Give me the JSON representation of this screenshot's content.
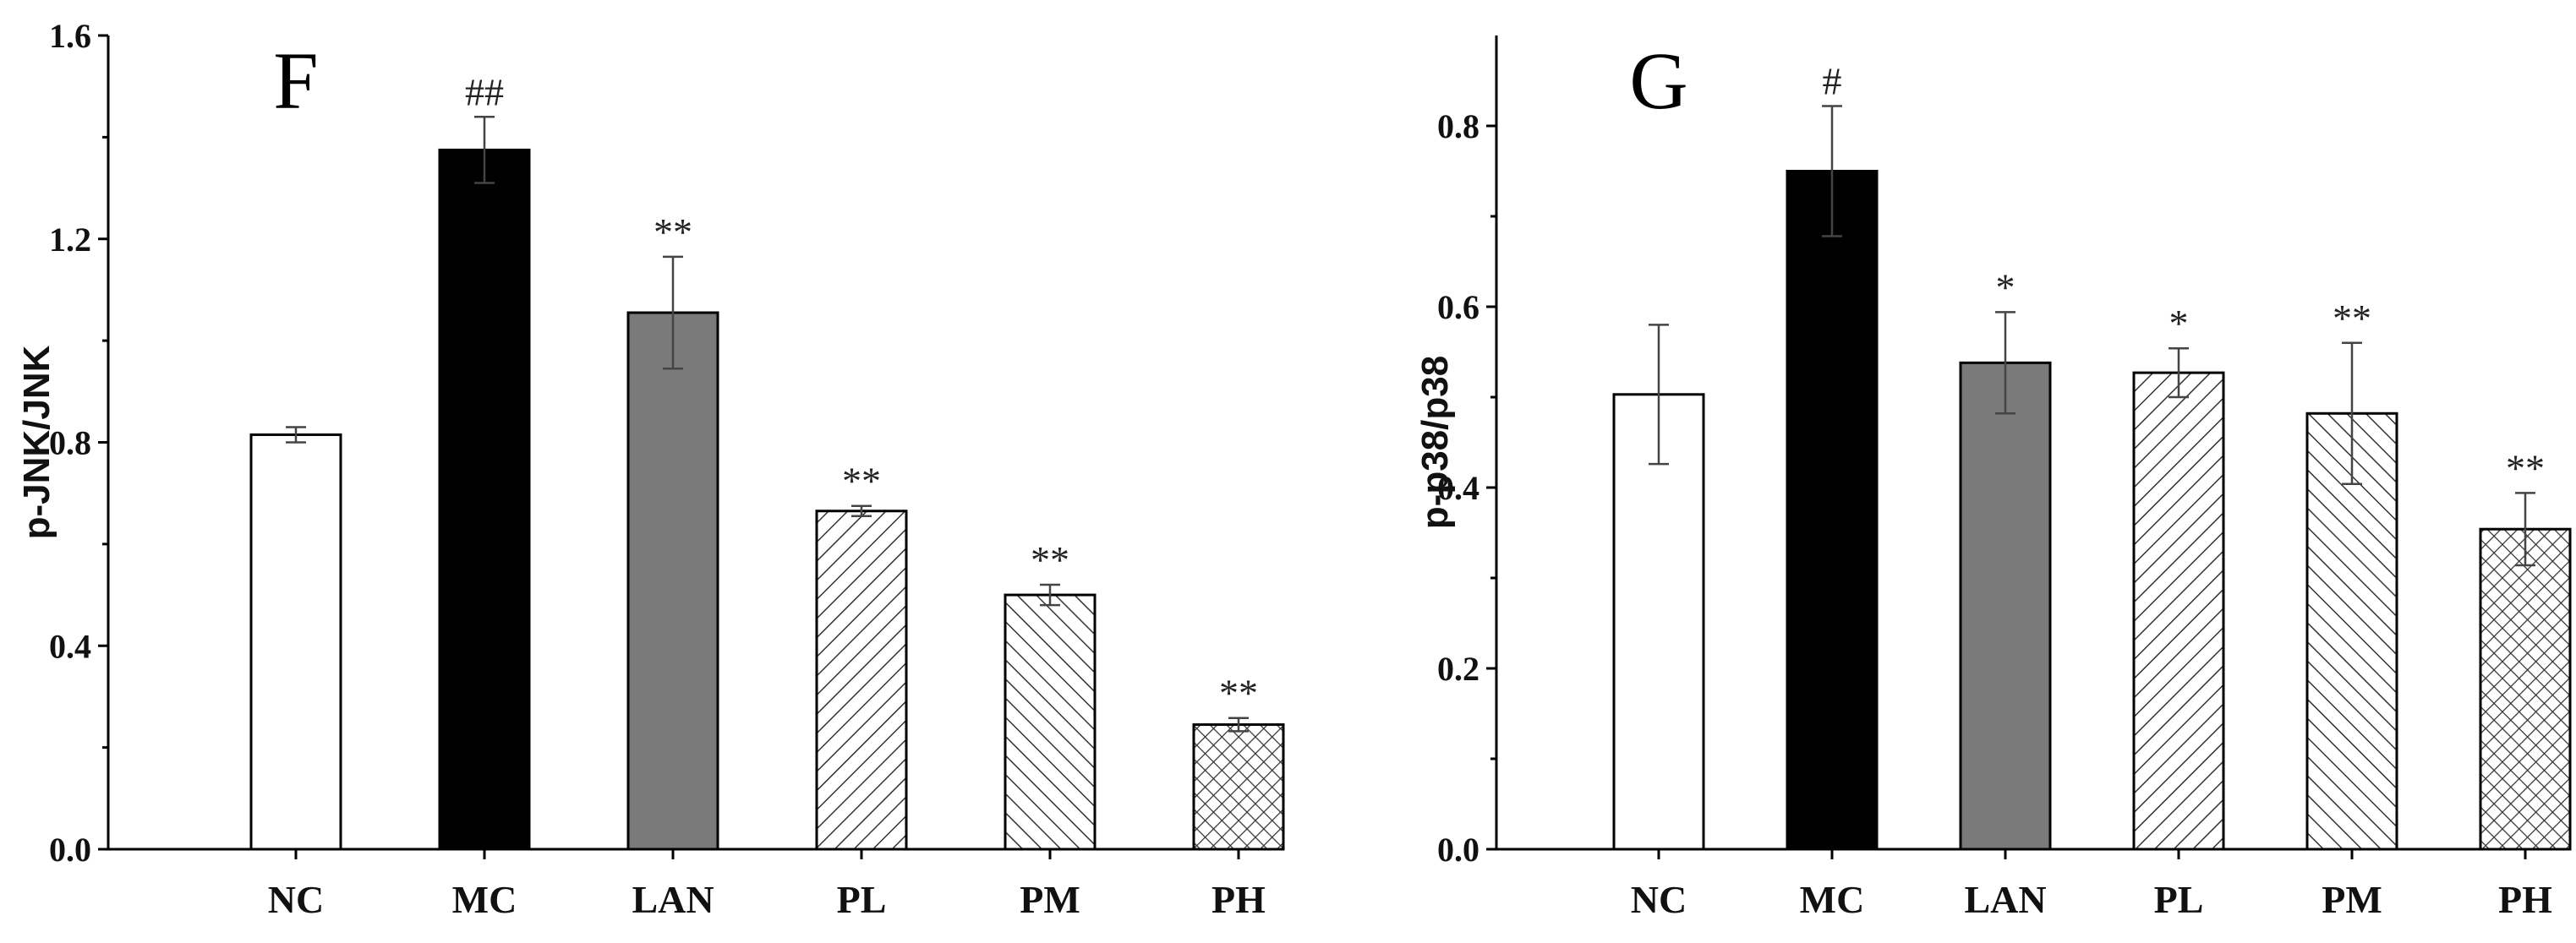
{
  "chart_data": [
    {
      "type": "bar",
      "panel": "F",
      "title": "",
      "xlabel": "",
      "ylabel": "p-JNK/JNK",
      "ylim": [
        0,
        1.6
      ],
      "yticks": [
        0.0,
        0.4,
        0.8,
        1.2,
        1.6
      ],
      "ytick_labels": [
        "0.0",
        "0.4",
        "0.8",
        "1.2",
        "1.6"
      ],
      "categories": [
        "NC",
        "MC",
        "LAN",
        "PL",
        "PM",
        "PH"
      ],
      "values": [
        0.815,
        1.375,
        1.055,
        0.665,
        0.5,
        0.245
      ],
      "errors": [
        0.015,
        0.065,
        0.11,
        0.01,
        0.02,
        0.013
      ],
      "annotations": [
        "",
        "##",
        "**",
        "**",
        "**",
        "**"
      ],
      "fills": [
        "white",
        "black",
        "gray",
        "hatch-right",
        "hatch-left",
        "crosshatch"
      ]
    },
    {
      "type": "bar",
      "panel": "G",
      "title": "",
      "xlabel": "",
      "ylabel": "p-p38/p38",
      "ylim": [
        0,
        0.9
      ],
      "yticks": [
        0.0,
        0.2,
        0.4,
        0.6,
        0.8
      ],
      "ytick_labels": [
        "0.0",
        "0.2",
        "0.4",
        "0.6",
        "0.8"
      ],
      "categories": [
        "NC",
        "MC",
        "LAN",
        "PL",
        "PM",
        "PH"
      ],
      "values": [
        0.503,
        0.75,
        0.538,
        0.527,
        0.482,
        0.354
      ],
      "errors": [
        0.077,
        0.072,
        0.056,
        0.027,
        0.078,
        0.04
      ],
      "annotations": [
        "",
        "#",
        "*",
        "*",
        "**",
        "**"
      ],
      "fills": [
        "white",
        "black",
        "gray",
        "hatch-right",
        "hatch-left",
        "crosshatch"
      ]
    }
  ]
}
